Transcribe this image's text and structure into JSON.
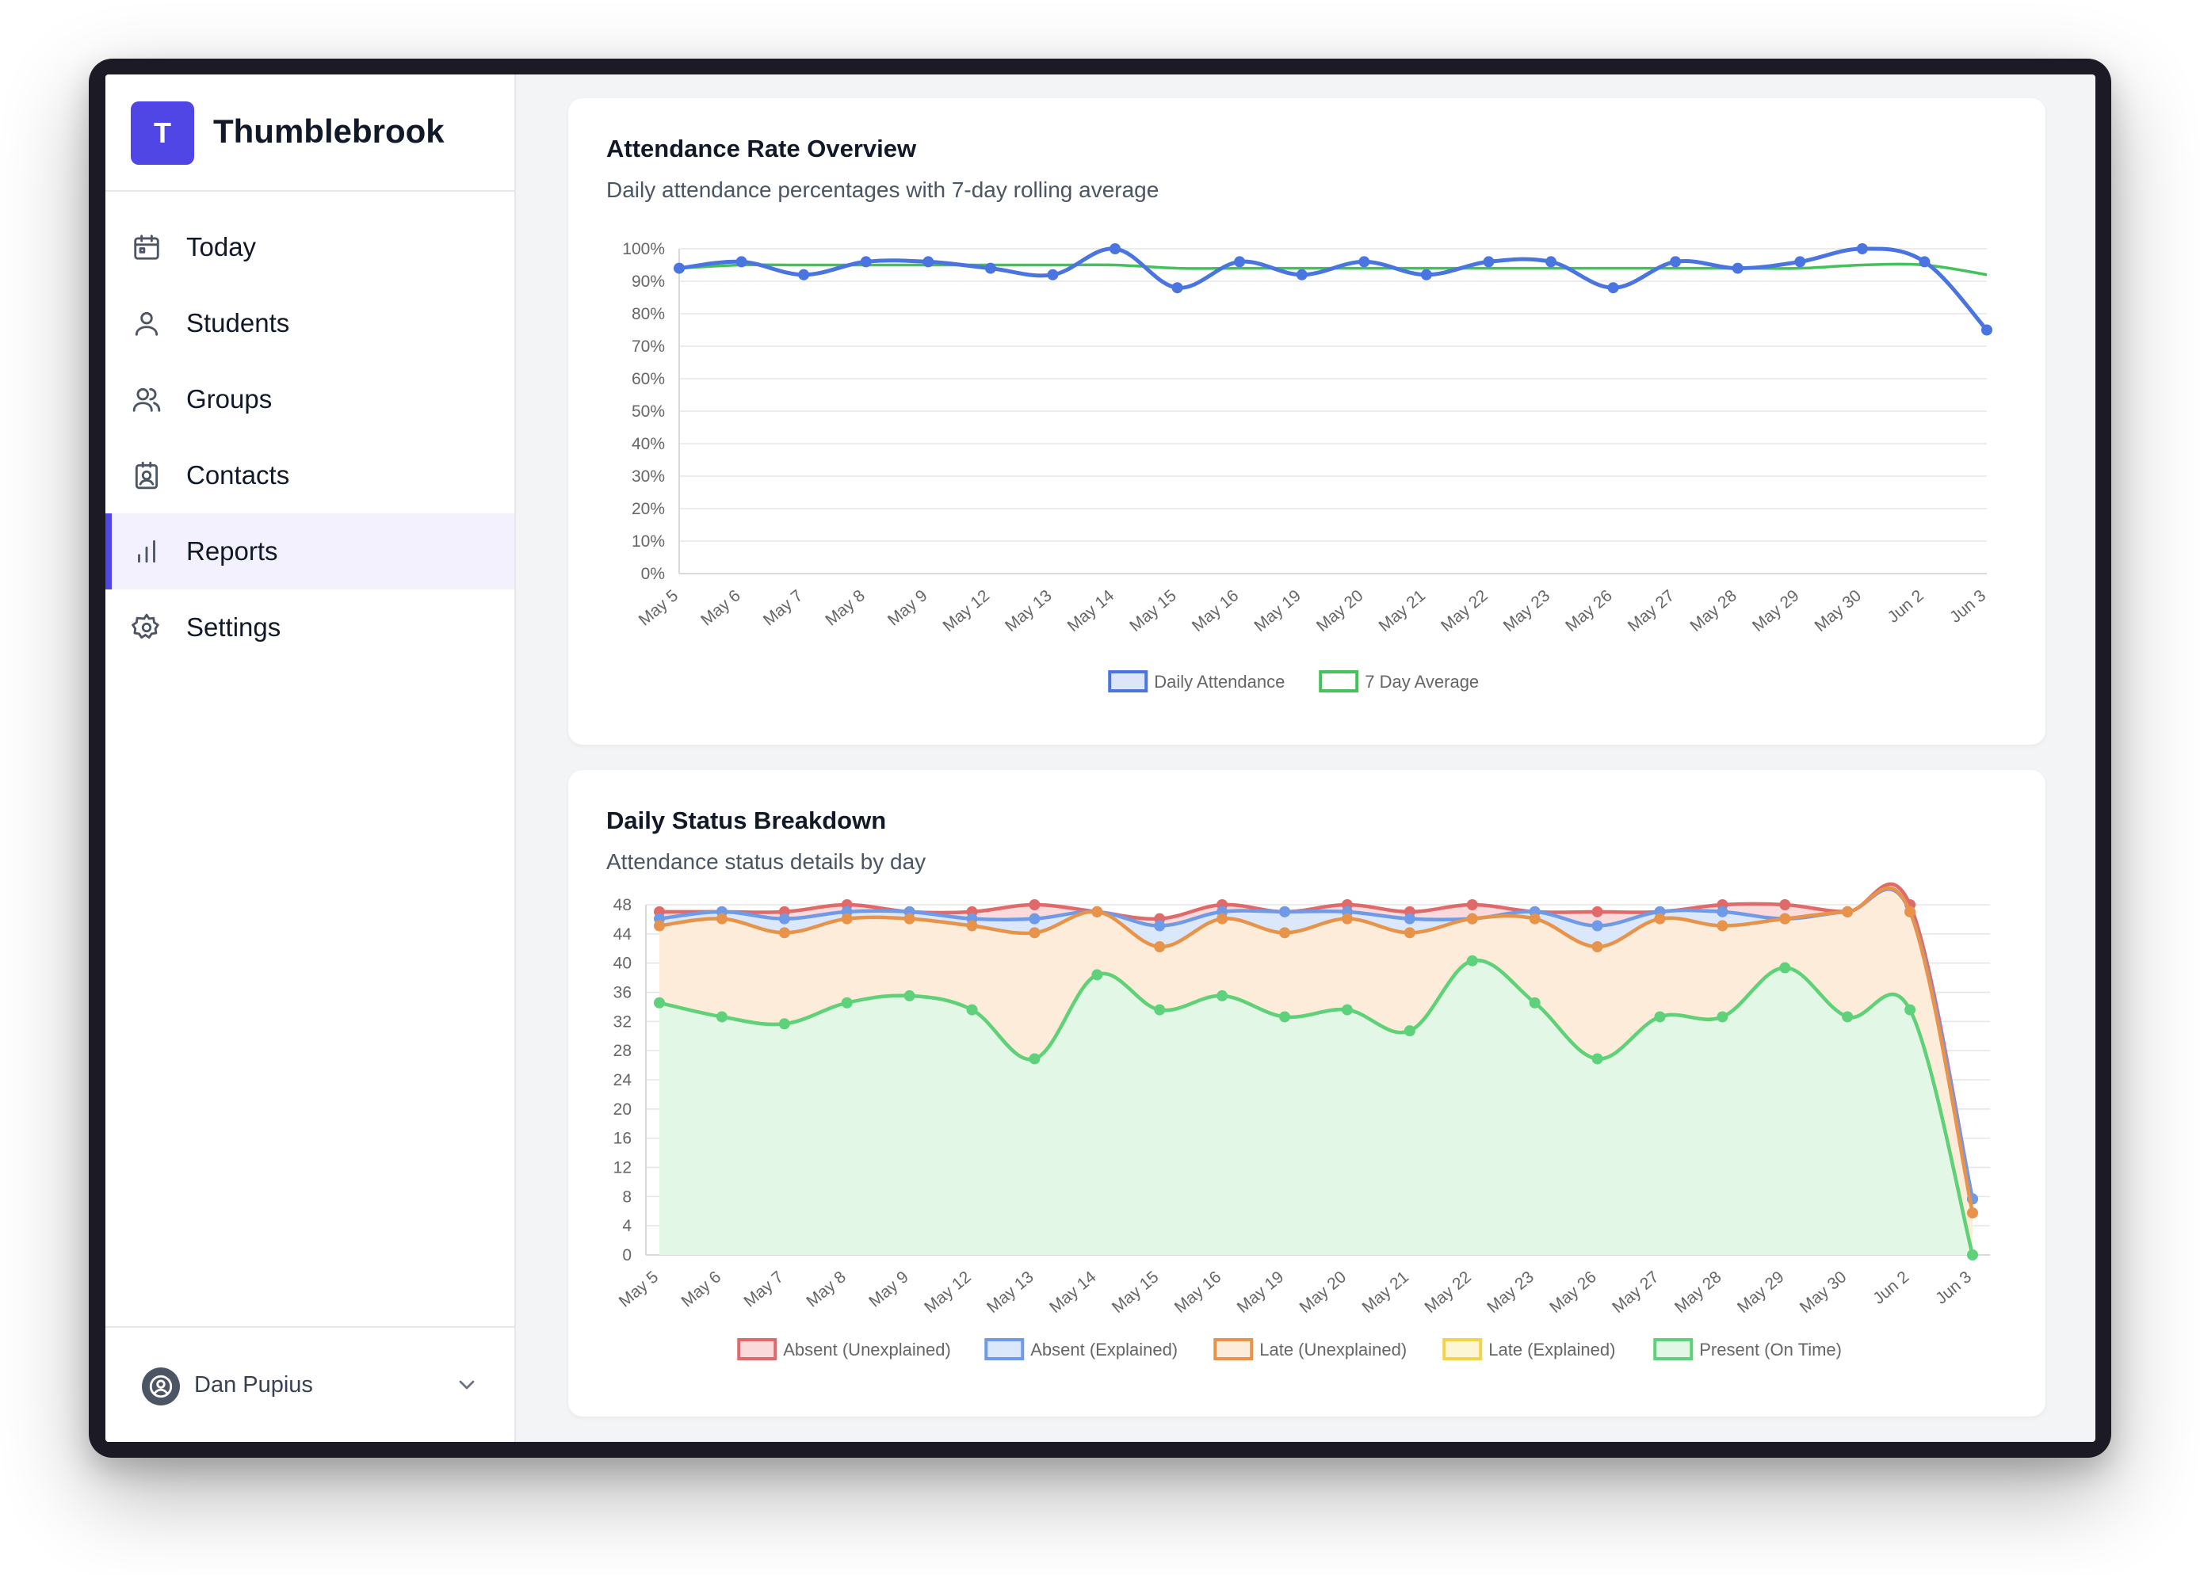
{
  "app": {
    "name": "Thumblebrook",
    "logo_letter": "T"
  },
  "colors": {
    "accent": "#4f46e5",
    "blue": "#4a74e0",
    "green": "#43c15a",
    "red": "#e06a6a",
    "orange": "#e8934a",
    "yellow": "#f2d34a"
  },
  "sidebar": {
    "items": [
      {
        "label": "Today",
        "icon": "calendar-icon"
      },
      {
        "label": "Students",
        "icon": "user-icon"
      },
      {
        "label": "Groups",
        "icon": "users-icon"
      },
      {
        "label": "Contacts",
        "icon": "contact-card-icon"
      },
      {
        "label": "Reports",
        "icon": "bar-chart-icon",
        "active": true
      },
      {
        "label": "Settings",
        "icon": "gear-icon"
      }
    ],
    "user": {
      "name": "Dan Pupius"
    }
  },
  "attendance_card": {
    "title": "Attendance Rate Overview",
    "subtitle": "Daily attendance percentages with 7-day rolling average"
  },
  "status_card": {
    "title": "Daily Status Breakdown",
    "subtitle": "Attendance status details by day"
  },
  "chart_data": [
    {
      "type": "line",
      "categories": [
        "May 5",
        "May 6",
        "May 7",
        "May 8",
        "May 9",
        "May 12",
        "May 13",
        "May 14",
        "May 15",
        "May 16",
        "May 19",
        "May 20",
        "May 21",
        "May 22",
        "May 23",
        "May 26",
        "May 27",
        "May 28",
        "May 29",
        "May 30",
        "Jun 2",
        "Jun 3"
      ],
      "series": [
        {
          "name": "Daily Attendance",
          "color": "#4a74e0",
          "values": [
            94,
            96,
            92,
            96,
            96,
            94,
            92,
            100,
            88,
            96,
            92,
            96,
            92,
            96,
            96,
            88,
            96,
            94,
            96,
            100,
            96,
            75
          ]
        },
        {
          "name": "7 Day Average",
          "color": "#43c15a",
          "values": [
            94,
            95,
            95,
            95,
            95,
            95,
            95,
            95,
            94,
            94,
            94,
            94,
            94,
            94,
            94,
            94,
            94,
            94,
            94,
            95,
            95,
            92
          ]
        }
      ],
      "ylim": [
        0,
        100
      ],
      "yticks": [
        "0%",
        "10%",
        "20%",
        "30%",
        "40%",
        "50%",
        "60%",
        "70%",
        "80%",
        "90%",
        "100%"
      ],
      "grid": true,
      "legend": "bottom"
    },
    {
      "type": "area",
      "stacked": true,
      "categories": [
        "May 5",
        "May 6",
        "May 7",
        "May 8",
        "May 9",
        "May 12",
        "May 13",
        "May 14",
        "May 15",
        "May 16",
        "May 19",
        "May 20",
        "May 21",
        "May 22",
        "May 23",
        "May 26",
        "May 27",
        "May 28",
        "May 29",
        "May 30",
        "Jun 2",
        "Jun 3"
      ],
      "series": [
        {
          "name": "Absent (Unexplained)",
          "color": "#e06a6a",
          "fill": "#fadada",
          "values": [
            1,
            0,
            1,
            1,
            0,
            1,
            2,
            0,
            1,
            1,
            0,
            1,
            1,
            2,
            0,
            2,
            0,
            1,
            2,
            0,
            1,
            0
          ]
        },
        {
          "name": "Absent (Explained)",
          "color": "#6f9ae8",
          "fill": "#dbe7fb",
          "values": [
            1,
            1,
            2,
            1,
            1,
            1,
            2,
            0,
            3,
            1,
            3,
            1,
            2,
            0,
            1,
            3,
            1,
            2,
            0,
            0,
            0,
            2
          ]
        },
        {
          "name": "Late (Unexplained)",
          "color": "#e8934a",
          "fill": "#fdecd9",
          "values": [
            11,
            14,
            13,
            12,
            11,
            12,
            18,
            9,
            9,
            11,
            12,
            13,
            14,
            6,
            12,
            16,
            14,
            13,
            7,
            15,
            14,
            6
          ]
        },
        {
          "name": "Late (Explained)",
          "color": "#f2d34a",
          "fill": "#fdf6d4",
          "values": [
            0,
            0,
            0,
            0,
            0,
            0,
            0,
            0,
            0,
            0,
            0,
            0,
            0,
            0,
            0,
            0,
            0,
            0,
            0,
            0,
            0,
            0
          ]
        },
        {
          "name": "Present (On Time)",
          "color": "#5dd27a",
          "fill": "#e2f7e6",
          "values": [
            36,
            34,
            33,
            36,
            37,
            35,
            28,
            40,
            35,
            37,
            34,
            35,
            32,
            42,
            36,
            28,
            34,
            34,
            41,
            34,
            35,
            0
          ]
        }
      ],
      "ylim": [
        0,
        50
      ],
      "yticks": [
        "0",
        "4",
        "8",
        "12",
        "16",
        "20",
        "24",
        "28",
        "32",
        "36",
        "40",
        "44",
        "48"
      ],
      "grid": true,
      "legend": "bottom"
    }
  ]
}
